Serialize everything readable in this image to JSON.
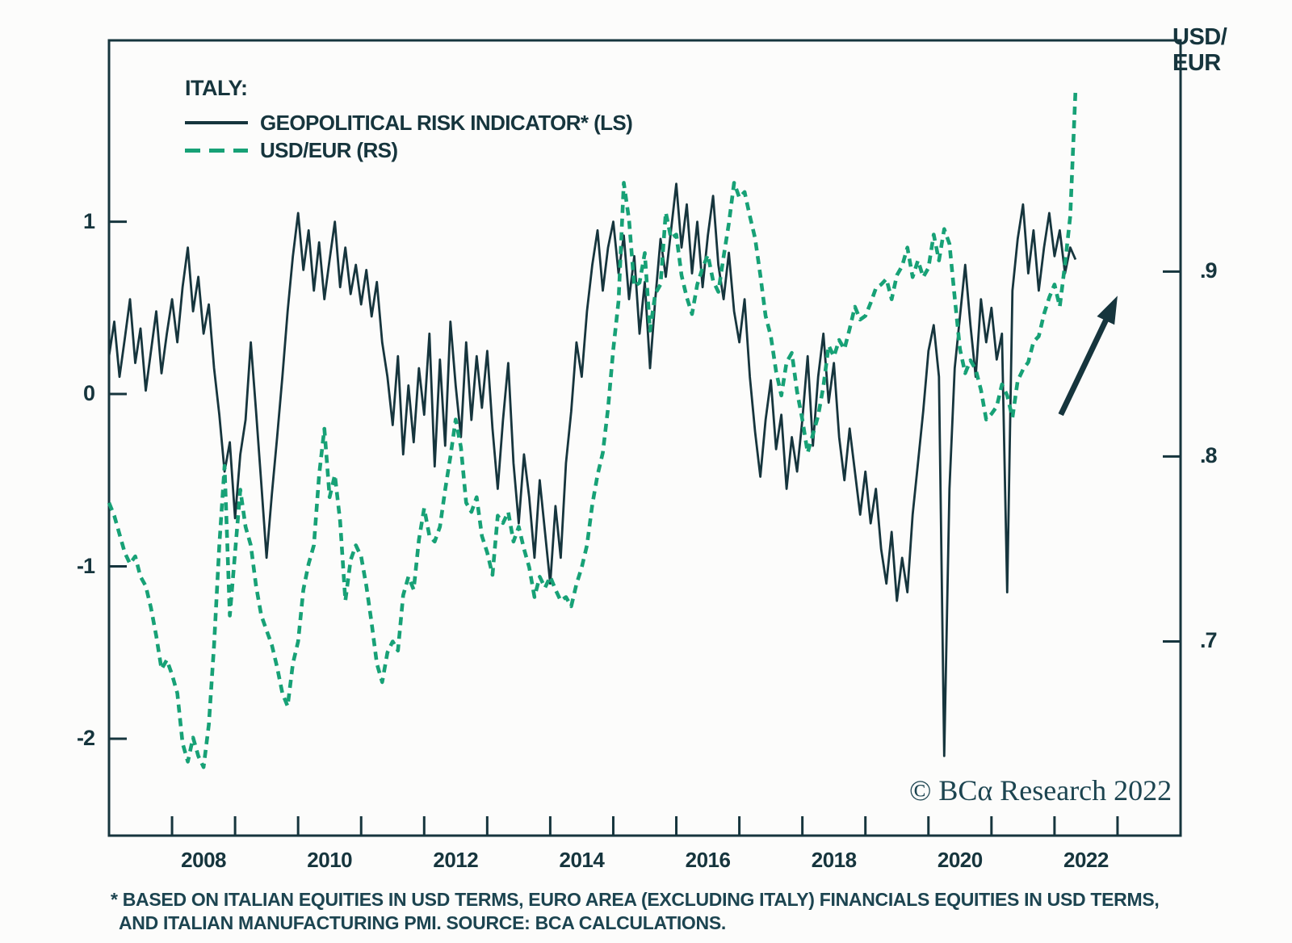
{
  "figure": {
    "legend": {
      "title": "ITALY:",
      "items": [
        {
          "label": "GEOPOLITICAL RISK INDICATOR* (LS)",
          "style": "solid",
          "color": "#16353d"
        },
        {
          "label": "USD/EUR (RS)",
          "style": "dashed",
          "color": "#17a176"
        }
      ]
    },
    "right_axis_title": {
      "line1": "USD/",
      "line2": "EUR"
    },
    "watermark": "© BCα Research 2022",
    "footnote": {
      "line1": "* BASED ON ITALIAN EQUITIES IN USD TERMS, EURO AREA (EXCLUDING ITALY) FINANCIALS EQUITIES IN USD TERMS,",
      "line2": "AND ITALIAN MANUFACTURING PMI. SOURCE: BCA CALCULATIONS."
    }
  },
  "colors": {
    "dark": "#16353d",
    "green": "#17a176",
    "background": "#fcfcfb"
  },
  "chart_data": {
    "type": "line",
    "title": "ITALY: GEOPOLITICAL RISK INDICATOR (LS) AND USD/EUR (RS)",
    "xlim": [
      2007.0,
      2024.0
    ],
    "grid": false,
    "legend_position": "top-left",
    "x_axis": {
      "ticks": [
        2008,
        2009,
        2010,
        2011,
        2012,
        2013,
        2014,
        2015,
        2016,
        2017,
        2018,
        2019,
        2020,
        2021,
        2022,
        2023
      ],
      "labels": [
        2008,
        2010,
        2012,
        2014,
        2016,
        2018,
        2020,
        2022
      ],
      "label_offset_years": 0.5
    },
    "left_axis": {
      "lim": [
        -2.562,
        2.052
      ],
      "ticks": [
        1,
        0,
        -1,
        -2
      ],
      "labels": [
        "1",
        "0",
        "-1",
        "-2"
      ]
    },
    "right_axis": {
      "lim": [
        0.595,
        1.025
      ],
      "ticks": [
        0.9,
        0.8,
        0.7
      ],
      "labels": [
        ".9",
        ".8",
        ".7"
      ]
    },
    "series": [
      {
        "name": "GEOPOLITICAL RISK INDICATOR* (LS)",
        "axis": "left",
        "style": "solid",
        "color": "#16353d",
        "x_start": 2007.0,
        "x_step": 0.0833333,
        "y": [
          0.22,
          0.42,
          0.1,
          0.32,
          0.55,
          0.18,
          0.38,
          0.02,
          0.25,
          0.48,
          0.12,
          0.35,
          0.55,
          0.3,
          0.62,
          0.85,
          0.48,
          0.68,
          0.35,
          0.52,
          0.15,
          -0.12,
          -0.45,
          -0.28,
          -0.72,
          -0.35,
          -0.15,
          0.3,
          -0.1,
          -0.52,
          -0.95,
          -0.58,
          -0.25,
          0.1,
          0.48,
          0.8,
          1.05,
          0.72,
          0.95,
          0.6,
          0.88,
          0.55,
          0.78,
          1.0,
          0.62,
          0.85,
          0.58,
          0.75,
          0.52,
          0.72,
          0.45,
          0.65,
          0.3,
          0.1,
          -0.18,
          0.22,
          -0.35,
          0.05,
          -0.28,
          0.15,
          -0.12,
          0.35,
          -0.42,
          0.2,
          -0.3,
          0.42,
          0.05,
          -0.25,
          0.3,
          -0.15,
          0.22,
          -0.08,
          0.25,
          -0.2,
          -0.55,
          -0.15,
          0.18,
          -0.4,
          -0.75,
          -0.35,
          -0.6,
          -0.95,
          -0.5,
          -0.8,
          -1.1,
          -0.65,
          -0.95,
          -0.4,
          -0.1,
          0.3,
          0.1,
          0.48,
          0.75,
          0.95,
          0.6,
          0.85,
          1.0,
          0.7,
          0.92,
          0.55,
          0.8,
          0.35,
          0.65,
          0.15,
          0.55,
          0.9,
          0.68,
          0.95,
          1.22,
          0.85,
          1.1,
          0.7,
          1.0,
          0.62,
          0.92,
          1.15,
          0.75,
          0.55,
          0.82,
          0.48,
          0.3,
          0.55,
          0.1,
          -0.22,
          -0.48,
          -0.15,
          0.08,
          -0.32,
          -0.12,
          -0.55,
          -0.25,
          -0.45,
          -0.15,
          0.22,
          -0.3,
          0.1,
          0.35,
          -0.05,
          0.18,
          -0.25,
          -0.5,
          -0.2,
          -0.45,
          -0.7,
          -0.45,
          -0.75,
          -0.55,
          -0.9,
          -1.1,
          -0.8,
          -1.2,
          -0.95,
          -1.15,
          -0.7,
          -0.4,
          -0.1,
          0.25,
          0.4,
          0.1,
          -2.1,
          -0.55,
          0.15,
          0.45,
          0.75,
          0.4,
          0.1,
          0.55,
          0.3,
          0.5,
          0.2,
          0.35,
          -1.15,
          0.6,
          0.9,
          1.1,
          0.7,
          0.95,
          0.6,
          0.85,
          1.05,
          0.8,
          0.95,
          0.7,
          0.85,
          0.78
        ]
      },
      {
        "name": "USD/EUR (RS)",
        "axis": "right",
        "style": "dashed",
        "color": "#17a176",
        "x_start": 2007.0,
        "x_step": 0.0833333,
        "y": [
          0.775,
          0.768,
          0.758,
          0.748,
          0.742,
          0.746,
          0.735,
          0.73,
          0.718,
          0.703,
          0.685,
          0.69,
          0.682,
          0.672,
          0.645,
          0.635,
          0.648,
          0.638,
          0.632,
          0.655,
          0.698,
          0.752,
          0.795,
          0.714,
          0.748,
          0.782,
          0.762,
          0.752,
          0.73,
          0.714,
          0.706,
          0.698,
          0.686,
          0.672,
          0.665,
          0.688,
          0.7,
          0.728,
          0.742,
          0.752,
          0.79,
          0.815,
          0.778,
          0.79,
          0.765,
          0.722,
          0.744,
          0.752,
          0.746,
          0.73,
          0.71,
          0.688,
          0.678,
          0.694,
          0.7,
          0.695,
          0.725,
          0.735,
          0.728,
          0.755,
          0.772,
          0.757,
          0.754,
          0.762,
          0.782,
          0.8,
          0.82,
          0.805,
          0.775,
          0.77,
          0.778,
          0.757,
          0.748,
          0.736,
          0.768,
          0.764,
          0.77,
          0.754,
          0.762,
          0.75,
          0.74,
          0.724,
          0.735,
          0.729,
          0.735,
          0.728,
          0.722,
          0.724,
          0.719,
          0.731,
          0.74,
          0.752,
          0.774,
          0.79,
          0.802,
          0.826,
          0.858,
          0.884,
          0.948,
          0.928,
          0.892,
          0.894,
          0.91,
          0.868,
          0.888,
          0.893,
          0.932,
          0.918,
          0.92,
          0.898,
          0.886,
          0.877,
          0.893,
          0.902,
          0.909,
          0.895,
          0.889,
          0.908,
          0.926,
          0.948,
          0.94,
          0.943,
          0.93,
          0.918,
          0.898,
          0.876,
          0.865,
          0.846,
          0.833,
          0.851,
          0.856,
          0.835,
          0.82,
          0.802,
          0.812,
          0.822,
          0.838,
          0.86,
          0.854,
          0.863,
          0.858,
          0.869,
          0.881,
          0.874,
          0.876,
          0.883,
          0.891,
          0.893,
          0.896,
          0.885,
          0.898,
          0.903,
          0.913,
          0.897,
          0.906,
          0.897,
          0.902,
          0.92,
          0.906,
          0.923,
          0.915,
          0.886,
          0.858,
          0.845,
          0.852,
          0.847,
          0.836,
          0.82,
          0.823,
          0.827,
          0.839,
          0.833,
          0.821,
          0.841,
          0.847,
          0.851,
          0.862,
          0.865,
          0.877,
          0.886,
          0.893,
          0.881,
          0.904,
          0.93,
          0.998
        ]
      }
    ],
    "annotations": {
      "arrow": {
        "axis": "left",
        "x1": 2022.1,
        "y1": -0.12,
        "x2": 2023.0,
        "y2": 0.57
      }
    }
  }
}
